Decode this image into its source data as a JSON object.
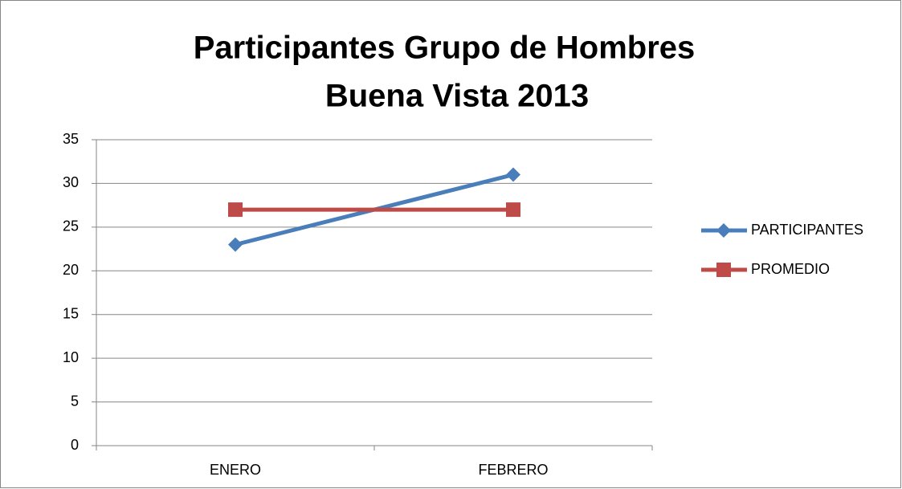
{
  "chart_data": {
    "type": "line",
    "title": [
      "Participantes Grupo de Hombres",
      "Buena Vista 2013"
    ],
    "categories": [
      "ENERO",
      "FEBRERO"
    ],
    "series": [
      {
        "name": "PARTICIPANTES",
        "color": "#4a7ebb",
        "marker": "diamond",
        "values": [
          23,
          31
        ]
      },
      {
        "name": "PROMEDIO",
        "color": "#be4b48",
        "marker": "square",
        "values": [
          27,
          27
        ]
      }
    ],
    "ylim": [
      0,
      35
    ],
    "yticks": [
      0,
      5,
      10,
      15,
      20,
      25,
      30,
      35
    ],
    "grid": true,
    "legend": "right"
  }
}
